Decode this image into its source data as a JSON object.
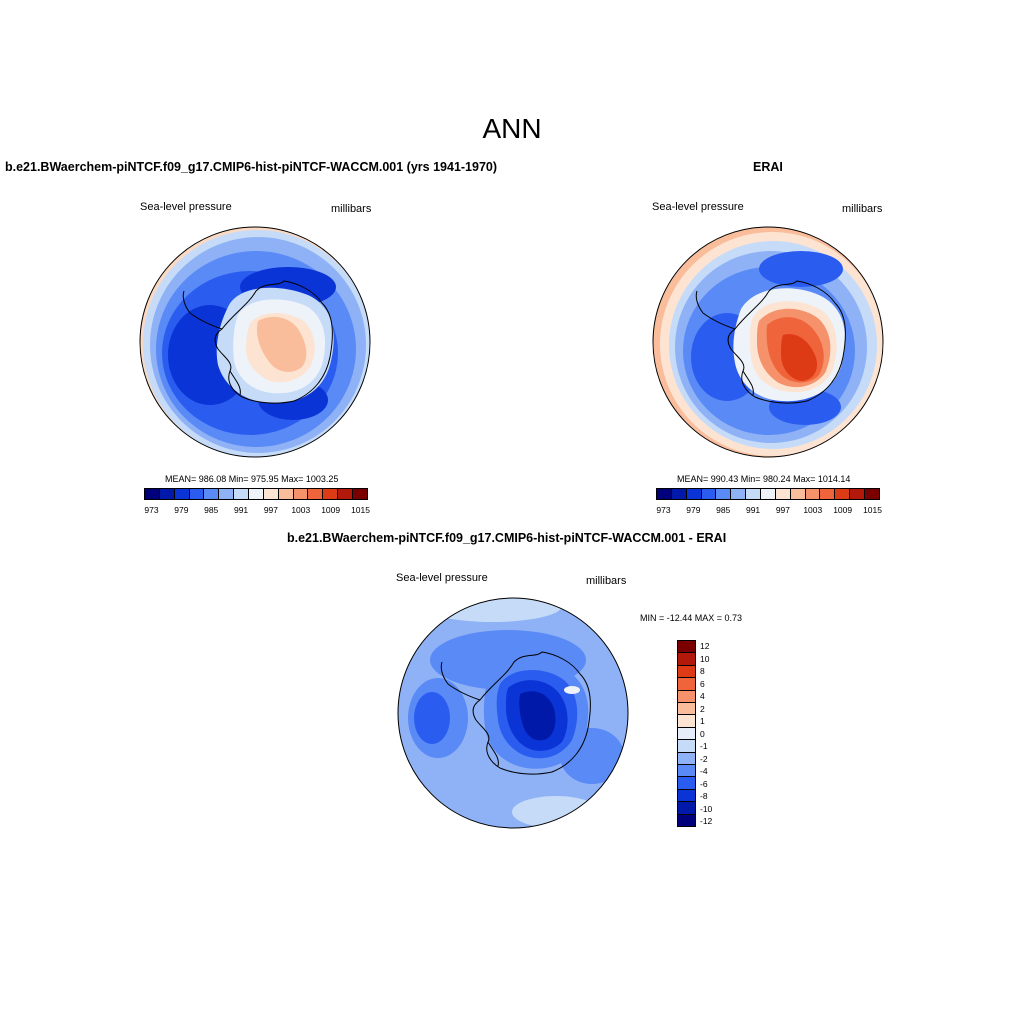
{
  "figure": {
    "title": "ANN"
  },
  "panels": [
    {
      "title": "b.e21.BWaerchem-piNTCF.f09_g17.CMIP6-hist-piNTCF-WACCM.001 (yrs 1941-1970)",
      "left_label": "Sea-level pressure",
      "right_label": "millibars",
      "stats": "MEAN= 986.08   Min= 975.95   Max= 1003.25"
    },
    {
      "title": "ERAI",
      "left_label": "Sea-level pressure",
      "right_label": "millibars",
      "stats": "MEAN= 990.43   Min= 980.24   Max= 1014.14"
    },
    {
      "title": "b.e21.BWaerchem-piNTCF.f09_g17.CMIP6-hist-piNTCF-WACCM.001 - ERAI",
      "left_label": "Sea-level pressure",
      "right_label": "millibars",
      "stats": "MIN = -12.44 MAX =   0.73"
    }
  ],
  "colorbar_abs": {
    "ticks": [
      "973",
      "979",
      "985",
      "991",
      "997",
      "1003",
      "1009",
      "1015"
    ],
    "colors": [
      "#00007a",
      "#0019a8",
      "#0a34d6",
      "#2a5cf0",
      "#5a8af5",
      "#8fb2f7",
      "#c6dbf8",
      "#eef3fa",
      "#fde4d2",
      "#f9bd9c",
      "#f5926b",
      "#f0643c",
      "#dd3a16",
      "#b2190b",
      "#7a0000"
    ]
  },
  "colorbar_diff": {
    "ticks": [
      "12",
      "10",
      "8",
      "6",
      "4",
      "2",
      "1",
      "0",
      "-1",
      "-2",
      "-4",
      "-6",
      "-8",
      "-10",
      "-12"
    ],
    "colors": [
      "#7a0000",
      "#b2190b",
      "#dd3a16",
      "#f0643c",
      "#f5926b",
      "#f9bd9c",
      "#fde4d2",
      "#e6eef9",
      "#c6dbf8",
      "#8fb2f7",
      "#5a8af5",
      "#2a5cf0",
      "#0a34d6",
      "#0019a8",
      "#00007a"
    ]
  }
}
